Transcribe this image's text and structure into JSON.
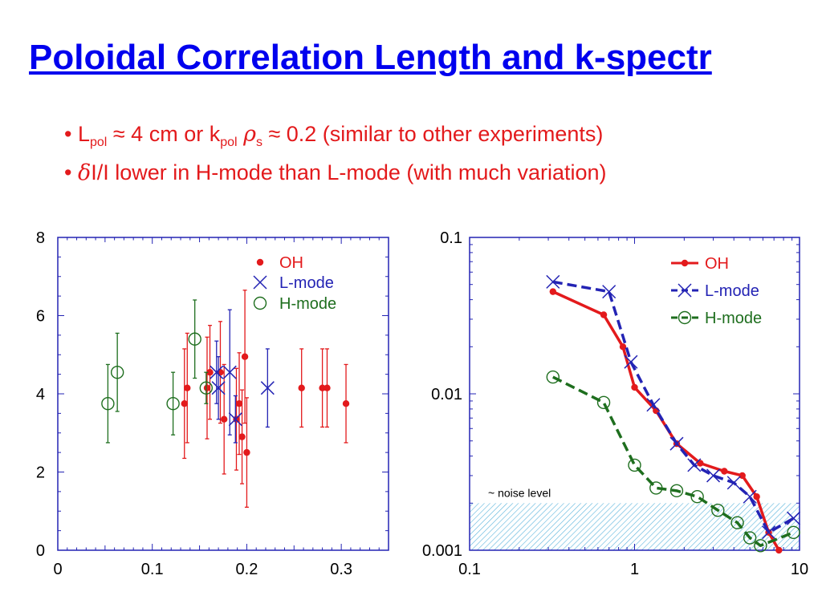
{
  "title": "Poloidal Correlation Length and k-spectr",
  "bullets": [
    {
      "marker": "•",
      "l": "L",
      "l_sub": "pol",
      "mid": " ≈ 4 cm or k",
      "k_sub": "pol",
      "rho": "ρ",
      "rho_sub": "s",
      "tail": " ≈ 0.2 (similar to other experiments)"
    },
    {
      "marker": "•",
      "delta": "δ",
      "text": "I/I lower in H-mode than L-mode (with much variation)"
    }
  ],
  "colors": {
    "oh": "#e31a1c",
    "lmode": "#2323b4",
    "hmode": "#1e6e1e",
    "axis": "#2323b4",
    "noise": "#5ab4dc"
  },
  "chart_data": [
    {
      "type": "scatter",
      "title": "",
      "xlabel": "",
      "ylabel": "",
      "xlim": [
        0,
        0.35
      ],
      "ylim": [
        0,
        8
      ],
      "xticks": [
        "0",
        "0.1",
        "0.2",
        "0.3"
      ],
      "yticks": [
        "0",
        "2",
        "4",
        "6",
        "8"
      ],
      "legend_position": "top-right",
      "series": [
        {
          "name": "OH",
          "marker": "•",
          "color": "#e31a1c",
          "points": [
            {
              "x": 0.134,
              "y": 3.75,
              "err": 1.4
            },
            {
              "x": 0.137,
              "y": 4.15,
              "err": 1.4
            },
            {
              "x": 0.158,
              "y": 4.15,
              "err": 1.3
            },
            {
              "x": 0.161,
              "y": 4.55,
              "err": 1.2
            },
            {
              "x": 0.172,
              "y": 4.55,
              "err": 1.3
            },
            {
              "x": 0.176,
              "y": 3.35,
              "err": 1.4
            },
            {
              "x": 0.189,
              "y": 3.35,
              "err": 1.3
            },
            {
              "x": 0.192,
              "y": 3.75,
              "err": 1.3
            },
            {
              "x": 0.195,
              "y": 2.9,
              "err": 1.2
            },
            {
              "x": 0.198,
              "y": 4.95,
              "err": 1.7
            },
            {
              "x": 0.2,
              "y": 2.5,
              "err": 1.4
            },
            {
              "x": 0.258,
              "y": 4.15,
              "err": 1.0
            },
            {
              "x": 0.28,
              "y": 4.15,
              "err": 1.0
            },
            {
              "x": 0.285,
              "y": 4.15,
              "err": 1.0
            },
            {
              "x": 0.305,
              "y": 3.75,
              "err": 1.0
            }
          ]
        },
        {
          "name": "L-mode",
          "marker": "×",
          "color": "#2323b4",
          "points": [
            {
              "x": 0.168,
              "y": 4.55,
              "err": 0.8
            },
            {
              "x": 0.17,
              "y": 4.15,
              "err": 0.8
            },
            {
              "x": 0.182,
              "y": 4.55,
              "err": 1.6
            },
            {
              "x": 0.188,
              "y": 3.35,
              "err": 0.6
            },
            {
              "x": 0.222,
              "y": 4.15,
              "err": 1.0
            }
          ]
        },
        {
          "name": "H-mode",
          "marker": "○",
          "color": "#1e6e1e",
          "points": [
            {
              "x": 0.053,
              "y": 3.75,
              "err": 1.0
            },
            {
              "x": 0.063,
              "y": 4.55,
              "err": 1.0
            },
            {
              "x": 0.122,
              "y": 3.75,
              "err": 0.8
            },
            {
              "x": 0.145,
              "y": 5.4,
              "err": 1.0
            },
            {
              "x": 0.157,
              "y": 4.15,
              "err": 0.4
            }
          ]
        }
      ]
    },
    {
      "type": "line",
      "title": "",
      "xlabel": "",
      "ylabel": "",
      "xscale": "log",
      "yscale": "log",
      "xlim": [
        0.1,
        10
      ],
      "ylim": [
        0.001,
        0.1
      ],
      "xticks": [
        "0.1",
        "1",
        "10"
      ],
      "yticks": [
        "0.001",
        "0.01",
        "0.1"
      ],
      "legend_position": "top-right",
      "annotation": "~ noise level",
      "noise_level": 0.002,
      "series": [
        {
          "name": "OH",
          "color": "#e31a1c",
          "line_style": "solid",
          "points": [
            [
              0.32,
              0.045
            ],
            [
              0.65,
              0.032
            ],
            [
              0.85,
              0.02
            ],
            [
              1.0,
              0.011
            ],
            [
              1.35,
              0.0078
            ],
            [
              1.8,
              0.0048
            ],
            [
              2.5,
              0.0036
            ],
            [
              3.5,
              0.0032
            ],
            [
              4.5,
              0.003
            ],
            [
              5.5,
              0.0022
            ],
            [
              6.5,
              0.0013
            ],
            [
              7.5,
              0.001
            ]
          ]
        },
        {
          "name": "L-mode",
          "color": "#2323b4",
          "line_style": "dashed",
          "points": [
            [
              0.32,
              0.052
            ],
            [
              0.7,
              0.045
            ],
            [
              0.95,
              0.016
            ],
            [
              1.3,
              0.0085
            ],
            [
              1.8,
              0.0048
            ],
            [
              2.3,
              0.0035
            ],
            [
              3.0,
              0.003
            ],
            [
              4.0,
              0.0027
            ],
            [
              5.0,
              0.0022
            ],
            [
              6.5,
              0.0013
            ],
            [
              9.2,
              0.0016
            ]
          ]
        },
        {
          "name": "H-mode",
          "color": "#1e6e1e",
          "line_style": "dashed",
          "points": [
            [
              0.32,
              0.0128
            ],
            [
              0.65,
              0.0088
            ],
            [
              1.0,
              0.0035
            ],
            [
              1.35,
              0.0025
            ],
            [
              1.8,
              0.0024
            ],
            [
              2.4,
              0.0022
            ],
            [
              3.2,
              0.0018
            ],
            [
              4.2,
              0.0015
            ],
            [
              5.0,
              0.0012
            ],
            [
              5.8,
              0.00107
            ],
            [
              9.2,
              0.0013
            ]
          ]
        }
      ]
    }
  ]
}
